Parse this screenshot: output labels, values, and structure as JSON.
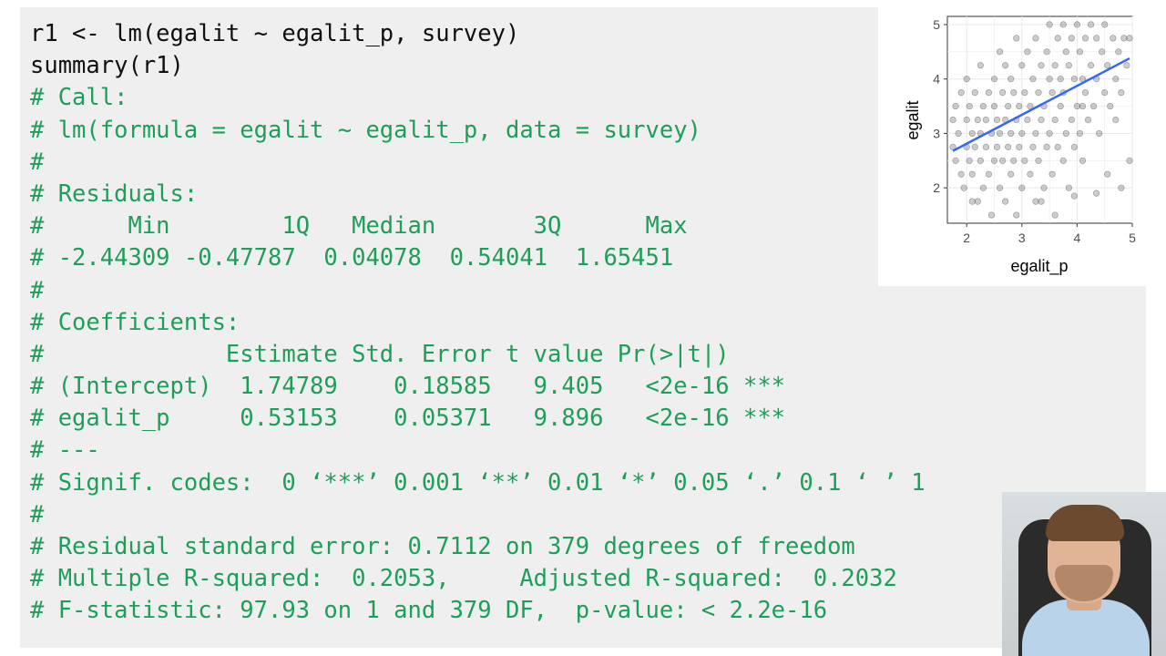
{
  "code": {
    "lines": [
      {
        "text": "r1 <- lm(egalit ~ egalit_p, survey)",
        "kind": "input"
      },
      {
        "text": "summary(r1)",
        "kind": "input"
      },
      {
        "text": "# Call:",
        "kind": "output"
      },
      {
        "text": "# lm(formula = egalit ~ egalit_p, data = survey)",
        "kind": "output"
      },
      {
        "text": "#",
        "kind": "output"
      },
      {
        "text": "# Residuals:",
        "kind": "output"
      },
      {
        "text": "#      Min        1Q   Median       3Q      Max",
        "kind": "output"
      },
      {
        "text": "# -2.44309 -0.47787  0.04078  0.54041  1.65451",
        "kind": "output"
      },
      {
        "text": "#",
        "kind": "output"
      },
      {
        "text": "# Coefficients:",
        "kind": "output"
      },
      {
        "text": "#             Estimate Std. Error t value Pr(>|t|)",
        "kind": "output"
      },
      {
        "text": "# (Intercept)  1.74789    0.18585   9.405   <2e-16 ***",
        "kind": "output"
      },
      {
        "text": "# egalit_p     0.53153    0.05371   9.896   <2e-16 ***",
        "kind": "output"
      },
      {
        "text": "# ---",
        "kind": "output"
      },
      {
        "text": "# Signif. codes:  0 ‘***’ 0.001 ‘**’ 0.01 ‘*’ 0.05 ‘.’ 0.1 ‘ ’ 1",
        "kind": "output"
      },
      {
        "text": "#",
        "kind": "output"
      },
      {
        "text": "# Residual standard error: 0.7112 on 379 degrees of freedom",
        "kind": "output"
      },
      {
        "text": "# Multiple R-squared:  0.2053,     Adjusted R-squared:  0.2032",
        "kind": "output"
      },
      {
        "text": "# F-statistic: 97.93 on 1 and 379 DF,  p-value: < 2.2e-16",
        "kind": "output"
      }
    ]
  },
  "plot": {
    "xlabel": "egalit_p",
    "ylabel": "egalit",
    "x_ticks": [
      "2",
      "3",
      "4",
      "5"
    ],
    "y_ticks": [
      "2",
      "3",
      "4",
      "5"
    ]
  },
  "chart_data": {
    "type": "scatter",
    "xlabel": "egalit_p",
    "ylabel": "egalit",
    "xlim": [
      1.65,
      5.0
    ],
    "ylim": [
      1.35,
      5.15
    ],
    "grid": true,
    "point_color": "#000000",
    "point_opacity": 0.2,
    "fit_line": {
      "intercept": 1.74789,
      "slope": 0.53153,
      "x_range": [
        1.75,
        4.95
      ],
      "color": "#3366ff"
    },
    "points": [
      [
        1.75,
        3.25
      ],
      [
        1.8,
        3.5
      ],
      [
        1.75,
        2.75
      ],
      [
        1.8,
        2.5
      ],
      [
        1.85,
        3.0
      ],
      [
        1.9,
        2.25
      ],
      [
        1.9,
        3.75
      ],
      [
        1.95,
        2.0
      ],
      [
        2.0,
        2.75
      ],
      [
        2.0,
        3.25
      ],
      [
        2.0,
        4.0
      ],
      [
        2.05,
        2.5
      ],
      [
        2.05,
        3.5
      ],
      [
        2.1,
        2.25
      ],
      [
        2.1,
        3.0
      ],
      [
        2.15,
        2.75
      ],
      [
        2.15,
        3.75
      ],
      [
        2.2,
        1.75
      ],
      [
        2.2,
        3.25
      ],
      [
        2.25,
        2.5
      ],
      [
        2.25,
        3.0
      ],
      [
        2.25,
        4.25
      ],
      [
        2.3,
        2.0
      ],
      [
        2.3,
        3.5
      ],
      [
        2.35,
        2.75
      ],
      [
        2.35,
        3.25
      ],
      [
        2.4,
        2.25
      ],
      [
        2.4,
        3.75
      ],
      [
        2.45,
        3.0
      ],
      [
        2.45,
        1.5
      ],
      [
        2.5,
        2.5
      ],
      [
        2.5,
        3.5
      ],
      [
        2.5,
        4.0
      ],
      [
        2.55,
        2.75
      ],
      [
        2.55,
        3.25
      ],
      [
        2.6,
        2.0
      ],
      [
        2.6,
        3.0
      ],
      [
        2.6,
        4.5
      ],
      [
        2.65,
        2.5
      ],
      [
        2.65,
        3.75
      ],
      [
        2.7,
        1.75
      ],
      [
        2.7,
        3.25
      ],
      [
        2.7,
        4.25
      ],
      [
        2.75,
        2.75
      ],
      [
        2.75,
        3.5
      ],
      [
        2.8,
        2.25
      ],
      [
        2.8,
        3.0
      ],
      [
        2.8,
        4.0
      ],
      [
        2.85,
        2.5
      ],
      [
        2.85,
        3.75
      ],
      [
        2.9,
        1.5
      ],
      [
        2.9,
        3.25
      ],
      [
        2.9,
        4.75
      ],
      [
        2.95,
        2.75
      ],
      [
        2.95,
        3.5
      ],
      [
        3.0,
        2.0
      ],
      [
        3.0,
        3.0
      ],
      [
        3.0,
        4.25
      ],
      [
        3.05,
        2.5
      ],
      [
        3.05,
        3.75
      ],
      [
        3.1,
        3.25
      ],
      [
        3.1,
        4.5
      ],
      [
        3.15,
        2.25
      ],
      [
        3.15,
        3.5
      ],
      [
        3.2,
        2.75
      ],
      [
        3.2,
        4.0
      ],
      [
        3.25,
        1.75
      ],
      [
        3.25,
        3.0
      ],
      [
        3.25,
        4.75
      ],
      [
        3.3,
        2.5
      ],
      [
        3.3,
        3.75
      ],
      [
        3.35,
        3.25
      ],
      [
        3.35,
        4.25
      ],
      [
        3.4,
        2.0
      ],
      [
        3.4,
        3.5
      ],
      [
        3.45,
        2.75
      ],
      [
        3.45,
        4.5
      ],
      [
        3.5,
        3.0
      ],
      [
        3.5,
        4.0
      ],
      [
        3.5,
        5.0
      ],
      [
        3.55,
        2.25
      ],
      [
        3.55,
        3.75
      ],
      [
        3.6,
        1.5
      ],
      [
        3.6,
        3.25
      ],
      [
        3.6,
        4.25
      ],
      [
        3.65,
        2.75
      ],
      [
        3.65,
        4.75
      ],
      [
        3.7,
        3.5
      ],
      [
        3.7,
        4.0
      ],
      [
        3.75,
        2.5
      ],
      [
        3.75,
        3.75
      ],
      [
        3.75,
        5.0
      ],
      [
        3.8,
        3.0
      ],
      [
        3.8,
        4.5
      ],
      [
        3.85,
        2.0
      ],
      [
        3.85,
        4.25
      ],
      [
        3.9,
        3.25
      ],
      [
        3.9,
        4.75
      ],
      [
        3.95,
        2.75
      ],
      [
        3.95,
        4.0
      ],
      [
        4.0,
        3.5
      ],
      [
        4.0,
        5.0
      ],
      [
        4.05,
        3.0
      ],
      [
        4.05,
        4.5
      ],
      [
        4.1,
        2.5
      ],
      [
        4.1,
        4.0
      ],
      [
        4.15,
        3.75
      ],
      [
        4.15,
        4.75
      ],
      [
        4.2,
        3.25
      ],
      [
        4.25,
        4.25
      ],
      [
        4.25,
        5.0
      ],
      [
        4.3,
        3.5
      ],
      [
        4.35,
        4.0
      ],
      [
        4.35,
        4.75
      ],
      [
        4.4,
        3.0
      ],
      [
        4.45,
        4.5
      ],
      [
        4.5,
        3.75
      ],
      [
        4.5,
        5.0
      ],
      [
        4.55,
        4.25
      ],
      [
        4.6,
        3.5
      ],
      [
        4.65,
        4.75
      ],
      [
        4.7,
        4.0
      ],
      [
        4.75,
        4.5
      ],
      [
        4.8,
        3.75
      ],
      [
        4.85,
        4.75
      ],
      [
        4.9,
        4.25
      ],
      [
        4.95,
        4.75
      ],
      [
        4.35,
        1.9
      ],
      [
        3.35,
        1.75
      ],
      [
        2.1,
        1.75
      ],
      [
        4.55,
        2.25
      ],
      [
        4.8,
        2.0
      ],
      [
        4.95,
        2.5
      ],
      [
        3.95,
        1.85
      ],
      [
        4.7,
        3.25
      ],
      [
        4.1,
        3.5
      ]
    ]
  }
}
